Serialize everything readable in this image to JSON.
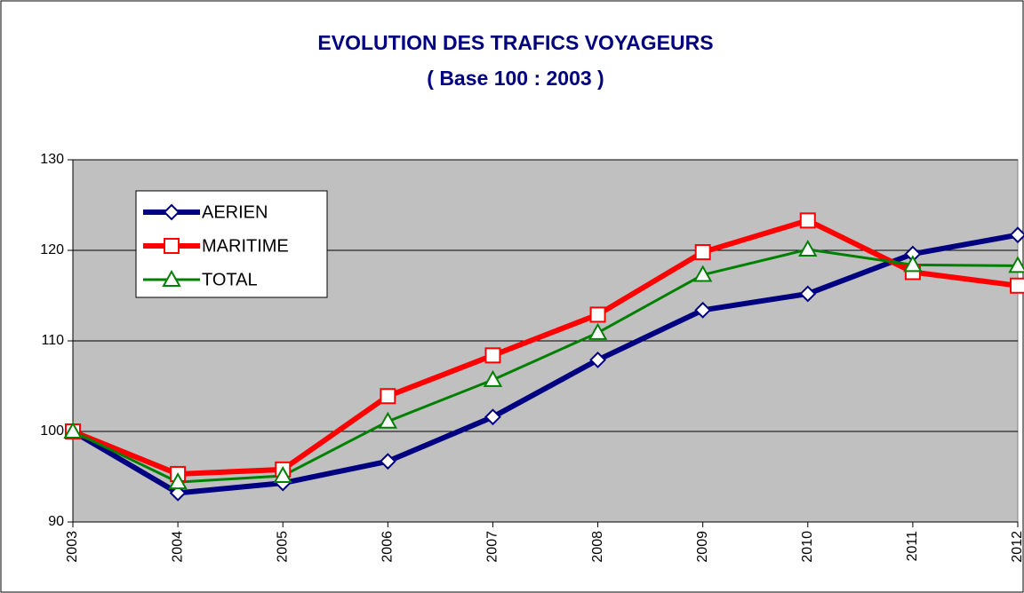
{
  "chart_data": {
    "type": "line",
    "title": "EVOLUTION DES TRAFICS VOYAGEURS",
    "subtitle": "( Base 100 : 2003 )",
    "categories": [
      "2003",
      "2004",
      "2005",
      "2006",
      "2007",
      "2008",
      "2009",
      "2010",
      "2011",
      "2012"
    ],
    "series": [
      {
        "name": "AERIEN",
        "color": "#000080",
        "values": [
          100,
          93.2,
          94.3,
          96.7,
          101.6,
          107.9,
          113.4,
          115.2,
          119.6,
          121.7
        ]
      },
      {
        "name": "MARITIME",
        "color": "#ff0000",
        "values": [
          100,
          95.3,
          95.8,
          103.9,
          108.4,
          112.9,
          119.8,
          123.3,
          117.6,
          116.1
        ]
      },
      {
        "name": "TOTAL",
        "color": "#008000",
        "values": [
          100,
          94.4,
          95.1,
          101.1,
          105.7,
          110.9,
          117.3,
          120.1,
          118.4,
          118.3
        ]
      }
    ],
    "ylim": [
      90,
      130
    ],
    "yticks": [
      90,
      100,
      110,
      120,
      130
    ],
    "grid": true,
    "legend": "upper left"
  }
}
